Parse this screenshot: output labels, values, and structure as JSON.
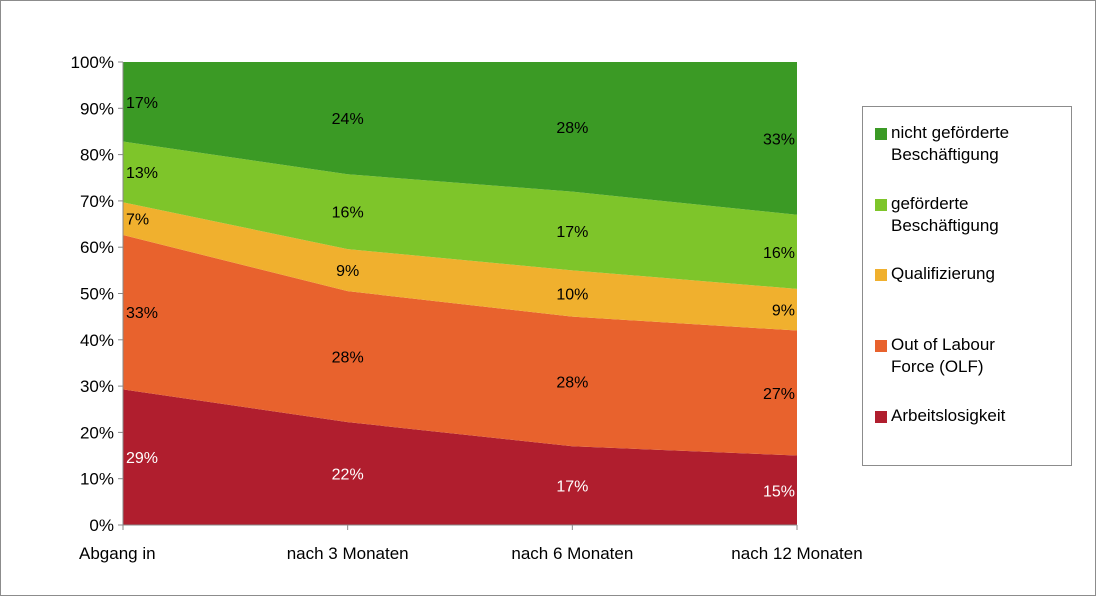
{
  "chart_data": {
    "type": "area",
    "stacked": true,
    "percent": true,
    "categories": [
      "Abgang in",
      "nach 3 Monaten",
      "nach 6 Monaten",
      "nach 12 Monaten"
    ],
    "series": [
      {
        "name": "Arbeitslosigkeit",
        "values": [
          29,
          22,
          17,
          15
        ],
        "labels": [
          "29%",
          "22%",
          "17%",
          "15%"
        ],
        "color": "#b01e2e",
        "label_color": "#ffffff"
      },
      {
        "name": "Out of Labour Force (OLF)",
        "values": [
          33,
          28,
          28,
          27
        ],
        "labels": [
          "33%",
          "28%",
          "28%",
          "27%"
        ],
        "color": "#e8622d",
        "label_color": "#000000"
      },
      {
        "name": "Qualifizierung",
        "values": [
          7,
          9,
          10,
          9
        ],
        "labels": [
          "7%",
          "9%",
          "10%",
          "9%"
        ],
        "color": "#f0b02e",
        "label_color": "#000000"
      },
      {
        "name": "geförderte Beschäftigung",
        "values": [
          13,
          16,
          17,
          16
        ],
        "labels": [
          "13%",
          "16%",
          "17%",
          "16%"
        ],
        "color": "#7ec52a",
        "label_color": "#000000"
      },
      {
        "name": "nicht geförderte Beschäftigung",
        "values": [
          17,
          24,
          28,
          33
        ],
        "labels": [
          "17%",
          "24%",
          "28%",
          "33%"
        ],
        "color": "#3b9a25",
        "label_color": "#000000"
      }
    ],
    "y_ticks": [
      "0%",
      "10%",
      "20%",
      "30%",
      "40%",
      "50%",
      "60%",
      "70%",
      "80%",
      "90%",
      "100%"
    ],
    "ylim": [
      0,
      100
    ],
    "legend_placement": "right",
    "legend": {
      "items": [
        {
          "label_lines": [
            "nicht geförderte",
            "Beschäftigung"
          ],
          "color": "#3b9a25"
        },
        {
          "label_lines": [
            "geförderte",
            "Beschäftigung"
          ],
          "color": "#7ec52a"
        },
        {
          "label_lines": [
            "Qualifizierung"
          ],
          "color": "#f0b02e"
        },
        {
          "label_lines": [
            "Out of Labour",
            "Force (OLF)"
          ],
          "color": "#e8622d"
        },
        {
          "label_lines": [
            "Arbeitslosigkeit"
          ],
          "color": "#b01e2e"
        }
      ]
    }
  }
}
